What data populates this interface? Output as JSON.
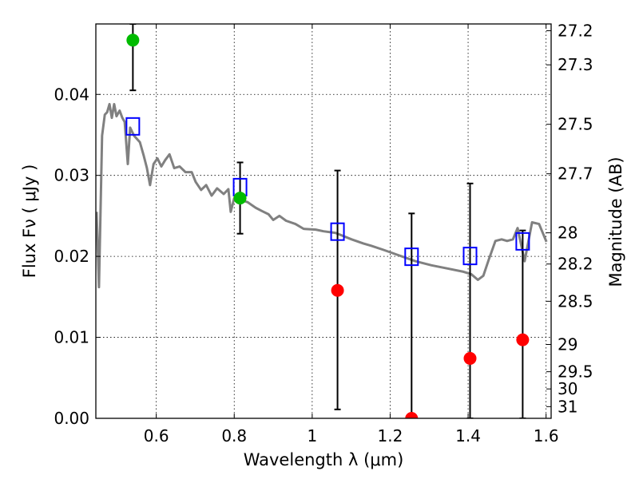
{
  "chart_data": {
    "type": "scatter",
    "xlabel": "Wavelength  λ (μm)",
    "ylabel": "Flux  Fν  ( μJy )",
    "y2label": "Magnitude (AB)",
    "xlim": [
      0.445,
      1.613
    ],
    "ylim": [
      0,
      0.0487
    ],
    "grid": true,
    "xticks": [
      {
        "v": 0.6,
        "label": "0.6"
      },
      {
        "v": 0.8,
        "label": "0.8"
      },
      {
        "v": 1.0,
        "label": "1"
      },
      {
        "v": 1.2,
        "label": "1.2"
      },
      {
        "v": 1.4,
        "label": "1.4"
      },
      {
        "v": 1.6,
        "label": "1.6"
      }
    ],
    "yticks": [
      {
        "v": 0.0,
        "label": "0.00"
      },
      {
        "v": 0.01,
        "label": "0.01"
      },
      {
        "v": 0.02,
        "label": "0.02"
      },
      {
        "v": 0.03,
        "label": "0.03"
      },
      {
        "v": 0.04,
        "label": "0.04"
      }
    ],
    "y2ticks": [
      "27.2",
      "27.3",
      "27.5",
      "27.7",
      "28",
      "28.2",
      "28.5",
      "29",
      "29.5",
      "30",
      "31"
    ],
    "colors": {
      "spectrum": "#808080",
      "detection": "#00bb00",
      "upper": "#ff0000",
      "model": "#0000ff",
      "errorbar": "#000000"
    },
    "spectrum": [
      [
        0.447,
        0.0255
      ],
      [
        0.453,
        0.0162
      ],
      [
        0.461,
        0.0349
      ],
      [
        0.468,
        0.0375
      ],
      [
        0.474,
        0.0378
      ],
      [
        0.48,
        0.0388
      ],
      [
        0.486,
        0.0371
      ],
      [
        0.492,
        0.0388
      ],
      [
        0.498,
        0.0373
      ],
      [
        0.506,
        0.038
      ],
      [
        0.513,
        0.0371
      ],
      [
        0.519,
        0.0366
      ],
      [
        0.527,
        0.0314
      ],
      [
        0.533,
        0.0359
      ],
      [
        0.543,
        0.0349
      ],
      [
        0.558,
        0.0341
      ],
      [
        0.568,
        0.0324
      ],
      [
        0.576,
        0.0309
      ],
      [
        0.584,
        0.0288
      ],
      [
        0.593,
        0.0314
      ],
      [
        0.603,
        0.0321
      ],
      [
        0.613,
        0.0311
      ],
      [
        0.623,
        0.0319
      ],
      [
        0.634,
        0.0326
      ],
      [
        0.646,
        0.0309
      ],
      [
        0.66,
        0.0311
      ],
      [
        0.675,
        0.0304
      ],
      [
        0.691,
        0.0304
      ],
      [
        0.701,
        0.0292
      ],
      [
        0.715,
        0.0282
      ],
      [
        0.728,
        0.0288
      ],
      [
        0.742,
        0.0275
      ],
      [
        0.756,
        0.0284
      ],
      [
        0.773,
        0.0277
      ],
      [
        0.785,
        0.0283
      ],
      [
        0.791,
        0.0255
      ],
      [
        0.8,
        0.0272
      ],
      [
        0.814,
        0.027
      ],
      [
        0.834,
        0.0267
      ],
      [
        0.855,
        0.026
      ],
      [
        0.871,
        0.0256
      ],
      [
        0.888,
        0.0252
      ],
      [
        0.9,
        0.0245
      ],
      [
        0.916,
        0.025
      ],
      [
        0.933,
        0.0244
      ],
      [
        0.957,
        0.024
      ],
      [
        0.978,
        0.0234
      ],
      [
        1.009,
        0.0233
      ],
      [
        1.029,
        0.0231
      ],
      [
        1.06,
        0.0229
      ],
      [
        1.101,
        0.0221
      ],
      [
        1.131,
        0.0216
      ],
      [
        1.152,
        0.0213
      ],
      [
        1.183,
        0.0208
      ],
      [
        1.224,
        0.0201
      ],
      [
        1.265,
        0.0194
      ],
      [
        1.306,
        0.0189
      ],
      [
        1.347,
        0.0185
      ],
      [
        1.388,
        0.0181
      ],
      [
        1.408,
        0.0178
      ],
      [
        1.425,
        0.0171
      ],
      [
        1.439,
        0.0176
      ],
      [
        1.453,
        0.0196
      ],
      [
        1.47,
        0.0219
      ],
      [
        1.486,
        0.0221
      ],
      [
        1.5,
        0.0219
      ],
      [
        1.515,
        0.0221
      ],
      [
        1.527,
        0.0235
      ],
      [
        1.545,
        0.0194
      ],
      [
        1.564,
        0.0242
      ],
      [
        1.582,
        0.024
      ],
      [
        1.601,
        0.0218
      ]
    ],
    "detections": [
      {
        "x": 0.54,
        "y": 0.0467,
        "err_lo": 0.0405,
        "err_hi": 0.0487
      },
      {
        "x": 0.815,
        "y": 0.0272,
        "err_lo": 0.0228,
        "err_hi": 0.0316
      }
    ],
    "nondetections": [
      {
        "x": 1.065,
        "y": 0.0158,
        "err_lo": 0.0011,
        "err_hi": 0.0306
      },
      {
        "x": 1.255,
        "y": 0.0,
        "err_lo": 0.0,
        "err_hi": 0.0253
      },
      {
        "x": 1.405,
        "y": 0.0074,
        "err_lo": 0.0,
        "err_hi": 0.029
      },
      {
        "x": 1.54,
        "y": 0.0097,
        "err_lo": 0.0,
        "err_hi": 0.0232
      }
    ],
    "model_points": [
      [
        0.54,
        0.036
      ],
      [
        0.815,
        0.0285
      ],
      [
        1.065,
        0.023
      ],
      [
        1.255,
        0.0199
      ],
      [
        1.405,
        0.02
      ],
      [
        1.54,
        0.0218
      ]
    ]
  }
}
